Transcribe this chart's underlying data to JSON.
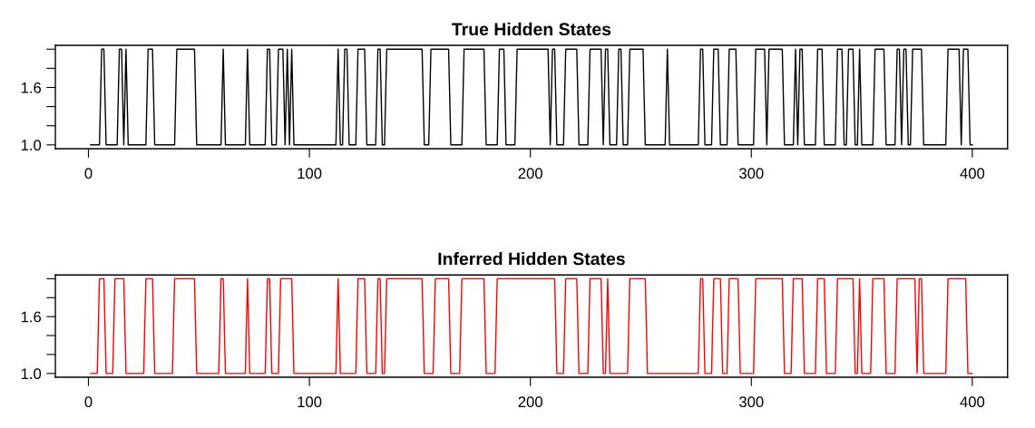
{
  "chart_data": [
    {
      "type": "line",
      "title": "True Hidden States",
      "xlim": [
        -14.96,
        415.96
      ],
      "ylim": [
        0.96,
        2.04
      ],
      "xticks": [
        0,
        100,
        200,
        300,
        400
      ],
      "yticks": [
        {
          "value": 1.0,
          "label": "1.0"
        },
        {
          "value": 1.2,
          "label": null
        },
        {
          "value": 1.4,
          "label": null
        },
        {
          "value": 1.6,
          "label": "1.6"
        },
        {
          "value": 1.8,
          "label": null
        },
        {
          "value": 2.0,
          "label": null
        }
      ],
      "series": [
        {
          "color": "#000000",
          "x": [
            1,
            5,
            6,
            7,
            8,
            13,
            14,
            15,
            16,
            17,
            18,
            26,
            27,
            29,
            30,
            39,
            40,
            48,
            49,
            60,
            61,
            62,
            71,
            72,
            73,
            80,
            81,
            82,
            83,
            85,
            86,
            88,
            89,
            90,
            91,
            92,
            93,
            112,
            113,
            114,
            115,
            116,
            117,
            118,
            121,
            122,
            125,
            126,
            130,
            131,
            132,
            133,
            134,
            135,
            151,
            152,
            154,
            155,
            163,
            164,
            169,
            170,
            179,
            180,
            185,
            186,
            188,
            189,
            193,
            194,
            208,
            209,
            210,
            211,
            212,
            215,
            216,
            221,
            222,
            226,
            227,
            232,
            233,
            234,
            235,
            236,
            239,
            240,
            241,
            242,
            244,
            245,
            251,
            252,
            261,
            262,
            263,
            276,
            277,
            278,
            279,
            282,
            283,
            285,
            286,
            289,
            290,
            293,
            294,
            301,
            302,
            306,
            307,
            308,
            314,
            315,
            319,
            320,
            321,
            322,
            323,
            324,
            329,
            330,
            332,
            333,
            338,
            339,
            341,
            342,
            343,
            344,
            346,
            347,
            348,
            349,
            350,
            355,
            356,
            360,
            361,
            365,
            366,
            367,
            368,
            369,
            370,
            371,
            372,
            373,
            377,
            378,
            388,
            389,
            394,
            395,
            396,
            398,
            399,
            400
          ],
          "values": [
            1,
            1,
            2,
            2,
            1,
            1,
            2,
            2,
            1,
            2,
            1,
            1,
            2,
            2,
            1,
            1,
            2,
            2,
            1,
            1,
            2,
            1,
            1,
            2,
            1,
            1,
            2,
            2,
            1,
            1,
            2,
            2,
            1,
            2,
            1,
            2,
            1,
            1,
            2,
            1,
            1,
            2,
            2,
            1,
            1,
            2,
            2,
            1,
            1,
            2,
            2,
            1,
            1,
            2,
            2,
            1,
            1,
            2,
            2,
            1,
            1,
            2,
            2,
            1,
            1,
            2,
            2,
            1,
            1,
            2,
            2,
            1,
            2,
            2,
            1,
            1,
            2,
            2,
            1,
            1,
            2,
            2,
            1,
            2,
            2,
            1,
            1,
            2,
            2,
            1,
            1,
            2,
            2,
            1,
            1,
            2,
            1,
            1,
            2,
            2,
            1,
            1,
            2,
            2,
            1,
            1,
            2,
            2,
            1,
            1,
            2,
            2,
            1,
            2,
            2,
            1,
            1,
            2,
            1,
            2,
            2,
            1,
            1,
            2,
            2,
            1,
            1,
            2,
            2,
            1,
            1,
            2,
            2,
            1,
            1,
            2,
            1,
            1,
            2,
            2,
            1,
            1,
            2,
            2,
            1,
            2,
            2,
            1,
            1,
            2,
            2,
            1,
            1,
            2,
            2,
            1,
            2,
            2,
            1,
            1
          ]
        }
      ]
    },
    {
      "type": "line",
      "title": "Inferred Hidden States",
      "xlim": [
        -14.96,
        415.96
      ],
      "ylim": [
        0.96,
        2.04
      ],
      "xticks": [
        0,
        100,
        200,
        300,
        400
      ],
      "yticks": [
        {
          "value": 1.0,
          "label": "1.0"
        },
        {
          "value": 1.2,
          "label": null
        },
        {
          "value": 1.4,
          "label": null
        },
        {
          "value": 1.6,
          "label": "1.6"
        },
        {
          "value": 1.8,
          "label": null
        },
        {
          "value": 2.0,
          "label": null
        }
      ],
      "series": [
        {
          "color": "#ff0000",
          "x": [
            1,
            4,
            5,
            7,
            8,
            11,
            12,
            16,
            17,
            25,
            26,
            29,
            30,
            38,
            39,
            48,
            49,
            59,
            60,
            61,
            62,
            71,
            72,
            73,
            80,
            81,
            82,
            83,
            86,
            87,
            92,
            93,
            112,
            113,
            114,
            121,
            122,
            125,
            126,
            130,
            131,
            132,
            133,
            134,
            135,
            151,
            152,
            156,
            157,
            163,
            164,
            168,
            169,
            179,
            180,
            184,
            185,
            211,
            212,
            215,
            216,
            221,
            222,
            226,
            227,
            232,
            233,
            234,
            235,
            236,
            244,
            245,
            252,
            253,
            276,
            277,
            278,
            279,
            282,
            283,
            286,
            287,
            289,
            290,
            294,
            295,
            301,
            302,
            314,
            315,
            318,
            319,
            323,
            324,
            329,
            330,
            333,
            334,
            338,
            339,
            346,
            347,
            348,
            349,
            350,
            354,
            355,
            360,
            361,
            365,
            366,
            374,
            375,
            376,
            377,
            378,
            388,
            389,
            397,
            398,
            400
          ],
          "values": [
            1,
            1,
            2,
            2,
            1,
            1,
            2,
            2,
            1,
            1,
            2,
            2,
            1,
            1,
            2,
            2,
            1,
            1,
            2,
            2,
            1,
            1,
            2,
            1,
            1,
            2,
            2,
            1,
            1,
            2,
            2,
            1,
            1,
            2,
            1,
            1,
            2,
            2,
            1,
            1,
            2,
            2,
            1,
            1,
            2,
            2,
            1,
            1,
            2,
            2,
            1,
            1,
            2,
            2,
            1,
            1,
            2,
            2,
            1,
            1,
            2,
            2,
            1,
            1,
            2,
            2,
            1,
            1,
            2,
            1,
            1,
            2,
            2,
            1,
            1,
            2,
            2,
            1,
            1,
            2,
            2,
            1,
            1,
            2,
            2,
            1,
            1,
            2,
            2,
            1,
            1,
            2,
            2,
            1,
            1,
            2,
            2,
            1,
            1,
            2,
            2,
            1,
            1,
            2,
            1,
            1,
            2,
            2,
            1,
            1,
            2,
            2,
            1,
            2,
            2,
            1,
            1,
            2,
            2,
            1,
            1
          ]
        }
      ]
    }
  ]
}
